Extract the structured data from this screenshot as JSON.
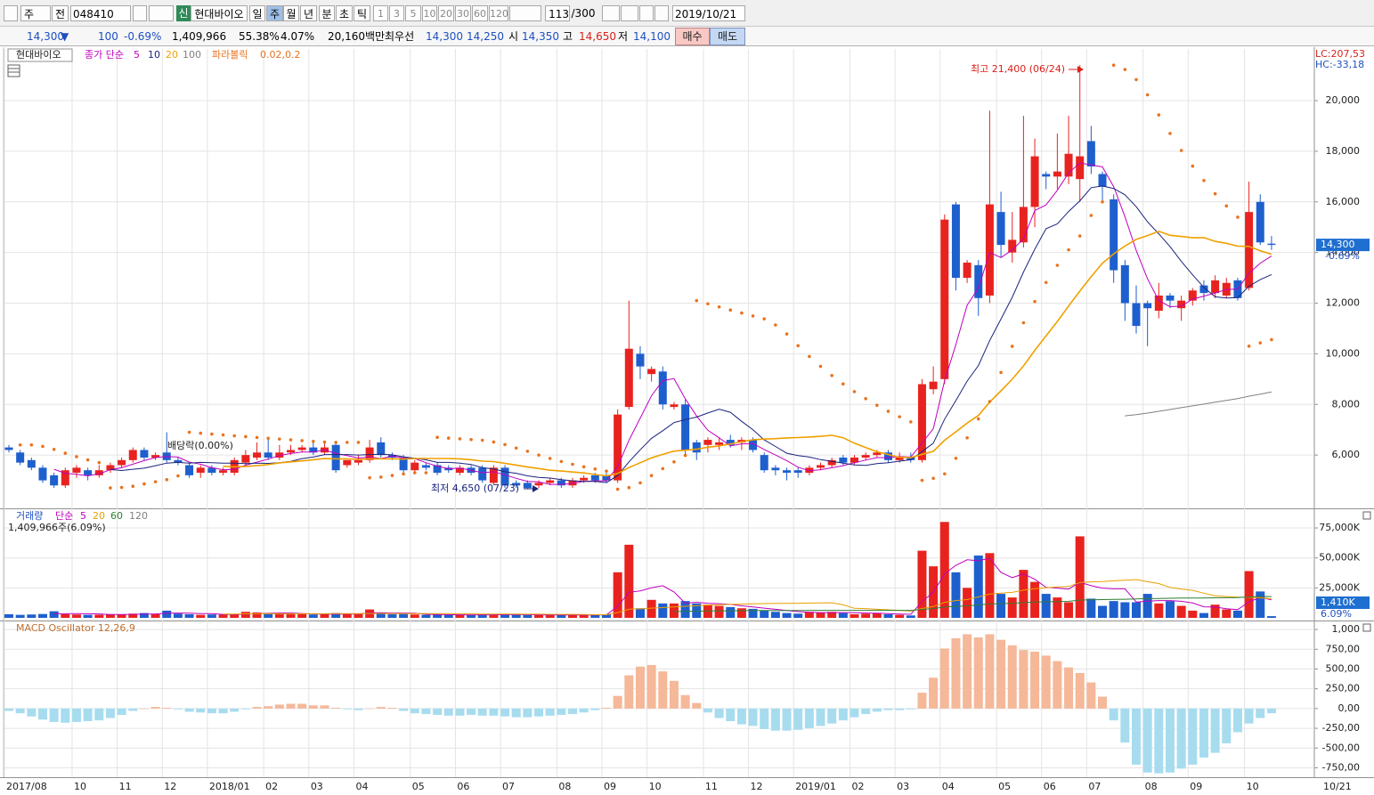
{
  "toolbar": {
    "view": "주",
    "mode": "전",
    "code": "048410",
    "badge": "신",
    "name": "현대바이오",
    "periods": [
      "일",
      "주",
      "월",
      "년",
      "분",
      "초",
      "틱"
    ],
    "minutes": [
      "1",
      "3",
      "5",
      "10",
      "20",
      "30",
      "60",
      "120"
    ],
    "count": "113",
    "max_count": "/300",
    "date": "2019/10/21"
  },
  "info_bar": {
    "price": "14,300",
    "direction": "▼",
    "change": "100",
    "change_rate": "-0.69%",
    "volume": "1,409,966",
    "volume_rate": "55.38%",
    "turnover": "4.07%",
    "amount": "20,160백만",
    "best_label": "최우선",
    "best_ask": "14,300",
    "best_bid": "14,250",
    "open_label": "시",
    "open": "14,350",
    "high_label": "고",
    "high": "14,650",
    "low_label": "저",
    "low": "14,100",
    "buy": "매수",
    "sell": "매도"
  },
  "chart_data": [
    {
      "type": "candlestick",
      "title": "현대바이오",
      "categories": [
        "2017/08",
        null,
        null,
        null,
        null,
        null,
        "10",
        null,
        null,
        null,
        "11",
        null,
        null,
        null,
        "12",
        null,
        null,
        null,
        "2018/01",
        null,
        null,
        null,
        null,
        "02",
        null,
        null,
        null,
        "03",
        null,
        null,
        null,
        "04",
        null,
        null,
        null,
        null,
        "05",
        null,
        null,
        null,
        "06",
        null,
        null,
        null,
        "07",
        null,
        null,
        null,
        null,
        "08",
        null,
        null,
        null,
        "09",
        null,
        null,
        null,
        "10",
        null,
        null,
        null,
        null,
        "11",
        null,
        null,
        null,
        "12",
        null,
        null,
        null,
        "2019/01",
        null,
        null,
        null,
        null,
        "02",
        null,
        null,
        null,
        "03",
        null,
        null,
        null,
        "04",
        null,
        null,
        null,
        null,
        "05",
        null,
        null,
        null,
        "06",
        null,
        null,
        null,
        "07",
        null,
        null,
        null,
        null,
        "08",
        null,
        null,
        null,
        "09",
        null,
        null,
        null,
        null,
        "10",
        null,
        null
      ],
      "last_date": "10/21",
      "open": [
        6300,
        6100,
        5800,
        5500,
        5200,
        4800,
        5300,
        5400,
        5200,
        5400,
        5600,
        5800,
        6200,
        5900,
        6100,
        5800,
        5600,
        5300,
        5500,
        5300,
        5300,
        5700,
        5900,
        6100,
        5900,
        6100,
        6200,
        6300,
        6100,
        6400,
        5600,
        5700,
        5800,
        6500,
        6000,
        5900,
        5400,
        5600,
        5600,
        5500,
        5300,
        5500,
        5500,
        4900,
        5500,
        4900,
        4900,
        4800,
        4900,
        5000,
        4800,
        5000,
        5200,
        5200,
        5000,
        7900,
        10000,
        9200,
        9300,
        7900,
        8000,
        6500,
        6400,
        6400,
        6600,
        6500,
        6600,
        6000,
        5500,
        5400,
        5400,
        5300,
        5500,
        5600,
        5900,
        5700,
        5900,
        6000,
        6100,
        5800,
        5900,
        5800,
        8600,
        9000,
        15900,
        13000,
        13500,
        12300,
        15600,
        14000,
        14400,
        15800,
        17100,
        17000,
        17000,
        16900,
        18400,
        17100,
        16100,
        13500,
        12000,
        12000,
        11700,
        12300,
        11800,
        12100,
        12700,
        12400,
        12300,
        12900,
        12600,
        16000,
        14350
      ],
      "high": [
        6400,
        6200,
        5900,
        5600,
        5300,
        5500,
        5600,
        5500,
        5600,
        5700,
        5900,
        6300,
        6300,
        6100,
        6900,
        5900,
        5700,
        5600,
        5600,
        5500,
        5900,
        6200,
        6500,
        6600,
        6400,
        6400,
        6400,
        6500,
        6500,
        6500,
        5800,
        6000,
        6600,
        6700,
        6100,
        6000,
        5800,
        5700,
        5700,
        5600,
        5600,
        5600,
        5600,
        5600,
        5600,
        5000,
        5000,
        5000,
        5100,
        5100,
        5100,
        5200,
        5300,
        5300,
        7800,
        12100,
        10300,
        9500,
        9500,
        8100,
        8200,
        6600,
        6700,
        6700,
        6800,
        6700,
        6700,
        6100,
        5600,
        5500,
        5500,
        5600,
        5700,
        5900,
        6000,
        6000,
        6100,
        6200,
        6200,
        6100,
        6100,
        9000,
        9500,
        15500,
        16000,
        13700,
        13700,
        19600,
        16400,
        15600,
        19400,
        18500,
        17200,
        18700,
        19400,
        21400,
        19000,
        17200,
        16300,
        13700,
        12700,
        12100,
        12800,
        12400,
        12300,
        12600,
        12900,
        13100,
        13000,
        13000,
        16800,
        16300,
        14650
      ],
      "low": [
        6100,
        5600,
        5400,
        4900,
        4700,
        4700,
        5100,
        5000,
        5100,
        5300,
        5500,
        5700,
        5800,
        5800,
        5700,
        5600,
        5100,
        5100,
        5200,
        5200,
        5200,
        5600,
        5800,
        5800,
        5800,
        6000,
        6100,
        6000,
        6000,
        5300,
        5500,
        5600,
        5700,
        5900,
        5800,
        5300,
        5300,
        5400,
        5200,
        5300,
        5200,
        5200,
        4900,
        4800,
        4700,
        4700,
        4650,
        4700,
        4800,
        4700,
        4700,
        4900,
        4900,
        4900,
        4900,
        7800,
        9000,
        8900,
        7800,
        7800,
        6000,
        5800,
        6100,
        6200,
        6300,
        6200,
        6100,
        5300,
        5200,
        5000,
        5100,
        5200,
        5400,
        5500,
        5600,
        5600,
        5800,
        5900,
        5700,
        5700,
        5700,
        5700,
        8400,
        8800,
        12500,
        12800,
        11500,
        12000,
        13800,
        13600,
        14200,
        15000,
        16500,
        16500,
        16700,
        16000,
        17100,
        16000,
        12800,
        11300,
        10800,
        10300,
        11400,
        11800,
        11300,
        11900,
        12100,
        12200,
        12200,
        12100,
        12500,
        14300,
        14100
      ],
      "close": [
        6200,
        5700,
        5500,
        5000,
        4800,
        5400,
        5500,
        5200,
        5400,
        5600,
        5800,
        6200,
        5900,
        6000,
        5800,
        5700,
        5200,
        5500,
        5300,
        5400,
        5800,
        6000,
        6100,
        5900,
        6100,
        6200,
        6300,
        6100,
        6300,
        5400,
        5800,
        5800,
        6300,
        6000,
        5900,
        5400,
        5700,
        5500,
        5300,
        5400,
        5500,
        5300,
        5000,
        5500,
        4800,
        4800,
        4700,
        4900,
        5000,
        4800,
        5000,
        5100,
        5000,
        5000,
        7600,
        10200,
        9500,
        9400,
        8000,
        8000,
        6200,
        6100,
        6600,
        6500,
        6400,
        6600,
        6200,
        5400,
        5400,
        5300,
        5300,
        5500,
        5600,
        5800,
        5700,
        5900,
        6000,
        6100,
        5800,
        5900,
        5800,
        8800,
        8900,
        15300,
        13000,
        13600,
        12200,
        15900,
        14300,
        14500,
        15800,
        17800,
        17000,
        17200,
        17900,
        17800,
        17400,
        16600,
        13300,
        12000,
        11100,
        11800,
        12300,
        12100,
        12100,
        12500,
        12400,
        12900,
        12800,
        12200,
        15600,
        14400,
        14300
      ],
      "up_color": "#e8231f",
      "down_color": "#1e5fce",
      "ylim": [
        3930,
        21970
      ],
      "yticks": [
        {
          "value": 6000,
          "label": "6,000"
        },
        {
          "value": 8000,
          "label": "8,000"
        },
        {
          "value": 10000,
          "label": "10,000"
        },
        {
          "value": 12000,
          "label": "12,000"
        },
        {
          "value": 14000,
          "label": "14,000"
        },
        {
          "value": 16000,
          "label": "16,000"
        },
        {
          "value": 18000,
          "label": "18,000"
        },
        {
          "value": 20000,
          "label": "20,000"
        }
      ],
      "grid": true,
      "moving_averages": {
        "name": "종가 단순",
        "color": "#c000c0",
        "periods": [
          5,
          10,
          20,
          100
        ],
        "colors": [
          "#c000c0",
          "#1a237e",
          "#f0a000",
          "#808080"
        ]
      },
      "parabolic": {
        "name": "파라볼릭",
        "params": "0.02,0.2",
        "color": "#e8731f"
      },
      "annotations": {
        "high": "최고 21,400 (06/24)",
        "low": "최저 4,650 (07/23)",
        "dividend": "배당락(0.00%)"
      },
      "last_label": "14,300",
      "last_change": "-0.69%",
      "lc": "LC:207,53",
      "hc": "HC:-33,18"
    },
    {
      "type": "bar",
      "title": "거래량",
      "subtitle": "1,409,966주(6.09%)",
      "values": [
        3000,
        2500,
        2800,
        3200,
        5500,
        3000,
        2800,
        2500,
        2600,
        3000,
        2800,
        3500,
        4000,
        3000,
        6000,
        3500,
        3000,
        2500,
        2800,
        2600,
        3000,
        5000,
        4500,
        4000,
        3500,
        3000,
        3200,
        2800,
        3000,
        4000,
        3000,
        3500,
        7000,
        3500,
        3000,
        3200,
        2800,
        2500,
        2600,
        2400,
        2500,
        2300,
        2800,
        2600,
        3000,
        2500,
        2400,
        2300,
        2200,
        2500,
        2400,
        2200,
        2500,
        3000,
        38000,
        61000,
        8000,
        15000,
        12000,
        12000,
        14000,
        12000,
        11000,
        10000,
        9000,
        8000,
        7500,
        6000,
        5000,
        4000,
        3500,
        5000,
        4500,
        5000,
        4000,
        3000,
        3500,
        4000,
        3000,
        2500,
        2000,
        56000,
        43000,
        80000,
        38000,
        25000,
        52000,
        54000,
        20000,
        17000,
        40000,
        30000,
        20000,
        17000,
        13000,
        68000,
        16000,
        10000,
        14000,
        13000,
        13000,
        20000,
        12000,
        14000,
        10000,
        6000,
        4000,
        11000,
        7000,
        6000,
        39000,
        22000,
        1410
      ],
      "ylim": [
        0,
        88400
      ],
      "yticks": [
        {
          "value": 25000,
          "label": "25,000K"
        },
        {
          "value": 50000,
          "label": "50,000K"
        },
        {
          "value": 75000,
          "label": "75,000K"
        }
      ],
      "moving_averages": {
        "name": "단순",
        "color": "#c000c0",
        "periods": [
          5,
          20,
          60,
          120
        ],
        "colors": [
          "#c000c0",
          "#e8a000",
          "#2e7d32",
          "#808080"
        ]
      },
      "last_label": "1,410K",
      "last_ratio": "6.09%"
    },
    {
      "type": "bar",
      "title": "MACD Oscillator 12,26,9",
      "values": [
        -30,
        -60,
        -100,
        -140,
        -170,
        -180,
        -170,
        -160,
        -150,
        -120,
        -80,
        -30,
        0,
        20,
        10,
        -10,
        -40,
        -50,
        -60,
        -60,
        -40,
        -10,
        20,
        30,
        50,
        60,
        60,
        40,
        40,
        10,
        -10,
        -20,
        0,
        20,
        10,
        -30,
        -60,
        -70,
        -80,
        -90,
        -90,
        -80,
        -90,
        -90,
        -100,
        -110,
        -110,
        -100,
        -90,
        -80,
        -70,
        -50,
        -20,
        10,
        160,
        420,
        530,
        550,
        470,
        350,
        170,
        70,
        -50,
        -120,
        -160,
        -200,
        -220,
        -260,
        -280,
        -280,
        -270,
        -250,
        -220,
        -190,
        -150,
        -110,
        -70,
        -40,
        -20,
        -20,
        -10,
        200,
        390,
        760,
        890,
        940,
        900,
        940,
        870,
        800,
        740,
        720,
        670,
        600,
        520,
        450,
        330,
        150,
        -150,
        -430,
        -710,
        -810,
        -820,
        -810,
        -760,
        -710,
        -620,
        -560,
        -440,
        -300,
        -190,
        -120,
        -60
      ],
      "positive_color": "#f5b899",
      "negative_color": "#a7dcef",
      "ylim": [
        -835,
        1080
      ],
      "yticks": [
        {
          "value": 1000,
          "label": "1,000"
        },
        {
          "value": 750,
          "label": "750,00"
        },
        {
          "value": 500,
          "label": "500,00"
        },
        {
          "value": 250,
          "label": "250,00"
        },
        {
          "value": 0,
          "label": "0,00"
        },
        {
          "value": -250,
          "label": "-250,00"
        },
        {
          "value": -500,
          "label": "-500,00"
        },
        {
          "value": -750,
          "label": "-750,00"
        }
      ]
    }
  ]
}
